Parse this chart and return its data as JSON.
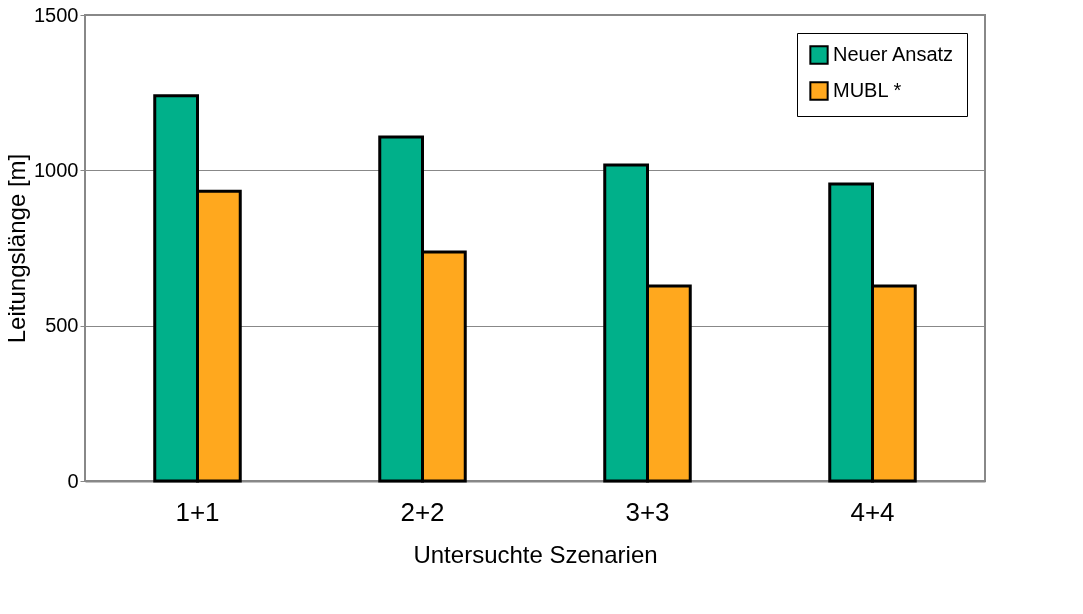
{
  "chart_data": {
    "type": "bar",
    "xlabel": "Untersuchte Szenarien",
    "ylabel": "Leitungslänge [m]",
    "categories": [
      "1+1",
      "2+2",
      "3+3",
      "4+4"
    ],
    "series": [
      {
        "name": "Neuer Ansatz",
        "color": "#00b08a",
        "values": [
          1240,
          1107,
          1017,
          956
        ]
      },
      {
        "name": "MUBL *",
        "color": "#ffa81e",
        "values": [
          933,
          737,
          628,
          628
        ]
      }
    ],
    "ylim": [
      0,
      1500
    ],
    "yticks": [
      0,
      500,
      1000,
      1500
    ],
    "grid": "y",
    "legend": "top right"
  }
}
